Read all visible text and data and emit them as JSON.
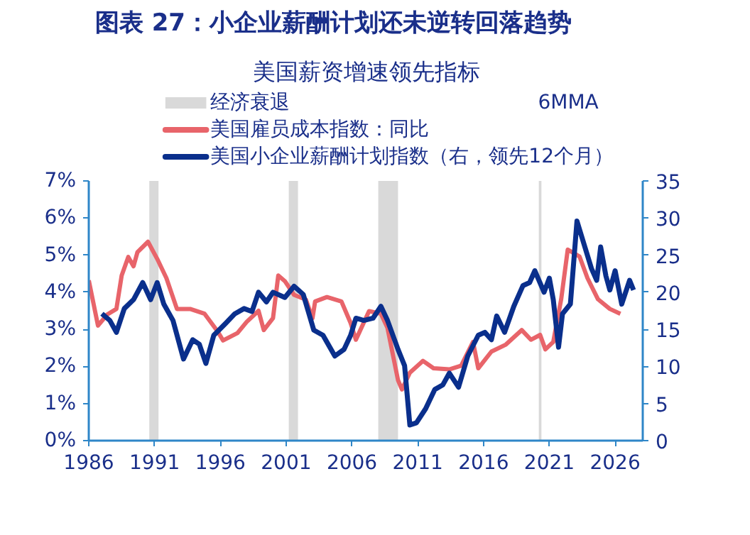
{
  "chart_data": {
    "type": "line",
    "title": "图表 27：小企业薪酬计划还未逆转回落趋势",
    "subtitle": "美国薪资增速领先指标",
    "annotations": [
      "6MMA"
    ],
    "xlim": [
      1986,
      2028.1
    ],
    "xticks": [
      1986,
      1991,
      1996,
      2001,
      2006,
      2011,
      2016,
      2021,
      2026
    ],
    "ylim": [
      0,
      7
    ],
    "yticks": [
      {
        "value": 0,
        "label": "0%"
      },
      {
        "value": 1,
        "label": "1%"
      },
      {
        "value": 2,
        "label": "2%"
      },
      {
        "value": 3,
        "label": "3%"
      },
      {
        "value": 4,
        "label": "4%"
      },
      {
        "value": 5,
        "label": "5%"
      },
      {
        "value": 6,
        "label": "6%"
      },
      {
        "value": 7,
        "label": "7%"
      }
    ],
    "y2lim": [
      0,
      35
    ],
    "y2ticks": [
      0,
      5,
      10,
      15,
      20,
      25,
      30,
      35
    ],
    "grid": false,
    "legend": "top left",
    "line_style": "solid",
    "marker": "none",
    "bands": [
      {
        "axis": "x",
        "from": 1990.6,
        "to": 1991.3,
        "label": "经济衰退",
        "color": "#d9d9d9"
      },
      {
        "axis": "x",
        "from": 2001.2,
        "to": 2001.9,
        "color": "#d9d9d9"
      },
      {
        "axis": "x",
        "from": 2008.0,
        "to": 2009.5,
        "color": "#d9d9d9"
      },
      {
        "axis": "x",
        "from": 2020.2,
        "to": 2020.4,
        "color": "#d9d9d9"
      }
    ],
    "series": [
      {
        "name": "美国雇员成本指数：同比",
        "color": "#e8646a",
        "x": [
          1986.0,
          1986.7,
          1987.4,
          1988.1,
          1988.5,
          1989.0,
          1989.4,
          1989.7,
          1990.5,
          1991.2,
          1991.9,
          1992.7,
          1993.7,
          1994.8,
          1995.8,
          1996.2,
          1997.3,
          1998.0,
          1998.9,
          1999.3,
          2000.0,
          2000.4,
          2000.9,
          2001.6,
          2002.5,
          2003.0,
          2003.2,
          2004.1,
          2005.2,
          2005.9,
          2006.3,
          2007.3,
          2008.2,
          2008.7,
          2009.5,
          2009.8,
          2010.4,
          2011.4,
          2012.2,
          2013.4,
          2014.3,
          2015.2,
          2015.6,
          2016.6,
          2017.7,
          2018.9,
          2019.6,
          2020.3,
          2020.7,
          2021.3,
          2021.9,
          2022.4,
          2023.3,
          2023.9,
          2024.7,
          2025.6,
          2026.4
        ],
        "values": [
          4.32,
          3.1,
          3.4,
          3.55,
          4.45,
          4.95,
          4.7,
          5.08,
          5.36,
          4.9,
          4.38,
          3.55,
          3.55,
          3.42,
          2.94,
          2.7,
          2.9,
          3.2,
          3.5,
          2.98,
          3.3,
          4.45,
          4.3,
          3.93,
          3.8,
          3.3,
          3.75,
          3.87,
          3.75,
          3.17,
          2.72,
          3.49,
          3.42,
          3.04,
          1.63,
          1.38,
          1.83,
          2.15,
          1.95,
          1.92,
          2.02,
          2.66,
          1.95,
          2.4,
          2.59,
          2.98,
          2.72,
          2.85,
          2.46,
          2.66,
          3.81,
          5.15,
          4.96,
          4.38,
          3.81,
          3.55,
          3.42
        ]
      },
      {
        "name": "美国小企业薪酬计划指数（右，领先12个月）",
        "color": "#0a2f8c",
        "axis": "y2",
        "x": [
          1987.0,
          1987.6,
          1988.1,
          1988.7,
          1989.4,
          1990.1,
          1990.7,
          1991.2,
          1991.7,
          1992.4,
          1993.2,
          1993.9,
          1994.4,
          1994.9,
          1995.5,
          1996.4,
          1997.1,
          1997.8,
          1998.4,
          1998.9,
          1999.5,
          2000.0,
          2000.9,
          2001.6,
          2002.3,
          2003.1,
          2003.8,
          2004.7,
          2005.4,
          2005.9,
          2006.3,
          2006.9,
          2007.6,
          2008.2,
          2008.7,
          2009.5,
          2010.0,
          2010.4,
          2010.9,
          2011.6,
          2012.3,
          2012.9,
          2013.4,
          2014.1,
          2014.8,
          2015.6,
          2016.1,
          2016.6,
          2017.0,
          2017.6,
          2018.3,
          2019.0,
          2019.5,
          2019.9,
          2020.6,
          2021.0,
          2021.3,
          2021.7,
          2022.0,
          2022.6,
          2023.1,
          2023.7,
          2024.2,
          2024.6,
          2024.9,
          2025.3,
          2025.6,
          2026.0,
          2026.5,
          2027.1,
          2027.4
        ],
        "values": [
          17.1,
          16.2,
          14.6,
          17.8,
          19.0,
          21.3,
          19.0,
          21.3,
          18.4,
          16.2,
          11.0,
          13.6,
          13.0,
          10.4,
          14.2,
          15.8,
          17.1,
          17.8,
          17.4,
          20.0,
          18.7,
          20.0,
          19.3,
          20.8,
          19.7,
          14.9,
          14.2,
          11.4,
          12.3,
          14.2,
          16.5,
          16.2,
          16.5,
          18.1,
          16.2,
          12.3,
          10.1,
          2.1,
          2.4,
          4.3,
          6.9,
          7.5,
          9.1,
          7.2,
          11.4,
          14.2,
          14.6,
          13.6,
          16.8,
          14.6,
          18.1,
          20.9,
          21.3,
          22.9,
          20.0,
          21.9,
          19.0,
          12.6,
          17.1,
          18.4,
          29.6,
          26.1,
          23.2,
          21.6,
          26.1,
          22.2,
          20.3,
          22.9,
          18.4,
          21.6,
          20.3
        ]
      }
    ]
  }
}
